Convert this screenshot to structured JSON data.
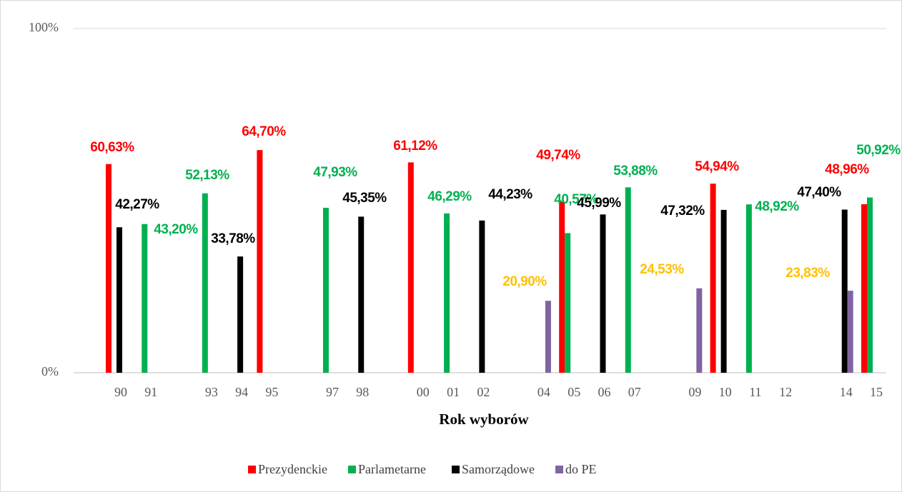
{
  "chart_data": {
    "type": "bar",
    "x_label": "Rok wyborów",
    "categories": [
      "90",
      "91",
      null,
      "93",
      "94",
      "95",
      null,
      "97",
      "98",
      null,
      "00",
      "01",
      "02",
      null,
      "04",
      "05",
      "06",
      "07",
      null,
      "09",
      "10",
      "11",
      "12",
      null,
      "14",
      "15"
    ],
    "ylim": [
      0,
      100
    ],
    "yticks": [
      {
        "value": 0,
        "label": "0%"
      },
      {
        "value": 100,
        "label": "100%"
      }
    ],
    "grid": true,
    "legend": "bottom",
    "series": [
      {
        "name": "Prezydenckie",
        "color": "#ff0000",
        "label_color": "#ff0000",
        "values": [
          60.63,
          null,
          null,
          null,
          null,
          64.7,
          null,
          null,
          null,
          null,
          61.12,
          null,
          null,
          null,
          null,
          49.74,
          null,
          null,
          null,
          null,
          54.94,
          null,
          null,
          null,
          null,
          48.96
        ],
        "value_labels": [
          "60,63%",
          null,
          null,
          null,
          null,
          "64,70%",
          null,
          null,
          null,
          null,
          "61,12%",
          null,
          null,
          null,
          null,
          "49,74%",
          null,
          null,
          null,
          null,
          "54,94%",
          null,
          null,
          null,
          null,
          "48,96%"
        ]
      },
      {
        "name": "Parlametarne",
        "color": "#00b050",
        "label_color": "#00b050",
        "values": [
          null,
          43.2,
          null,
          52.13,
          null,
          null,
          null,
          47.93,
          null,
          null,
          null,
          46.29,
          null,
          null,
          null,
          40.57,
          null,
          53.88,
          null,
          null,
          null,
          48.92,
          null,
          null,
          null,
          50.92
        ],
        "value_labels": [
          null,
          "43,20%",
          null,
          "52,13%",
          null,
          null,
          null,
          "47,93%",
          null,
          null,
          null,
          "46,29%",
          null,
          null,
          null,
          "40,57%",
          null,
          "53,88%",
          null,
          null,
          null,
          "48,92%",
          null,
          null,
          null,
          "50,92%"
        ]
      },
      {
        "name": "Samorządowe",
        "color": "#000000",
        "label_color": "#000000",
        "values": [
          42.27,
          null,
          null,
          null,
          33.78,
          null,
          null,
          null,
          45.35,
          null,
          null,
          null,
          44.23,
          null,
          null,
          null,
          45.99,
          null,
          null,
          null,
          47.32,
          null,
          null,
          null,
          47.4,
          null
        ],
        "value_labels": [
          "42,27%",
          null,
          null,
          null,
          "33,78%",
          null,
          null,
          null,
          "45,35%",
          null,
          null,
          null,
          "44,23%",
          null,
          null,
          null,
          "45,99%",
          null,
          null,
          null,
          "47,32%",
          null,
          null,
          null,
          "47,40%",
          null
        ]
      },
      {
        "name": "do PE",
        "color": "#8064a2",
        "label_color": "#ffc000",
        "values": [
          null,
          null,
          null,
          null,
          null,
          null,
          null,
          null,
          null,
          null,
          null,
          null,
          null,
          null,
          20.9,
          null,
          null,
          null,
          null,
          24.53,
          null,
          null,
          null,
          null,
          23.83,
          null
        ],
        "value_labels": [
          null,
          null,
          null,
          null,
          null,
          null,
          null,
          null,
          null,
          null,
          null,
          null,
          null,
          null,
          "20,90%",
          null,
          null,
          null,
          null,
          "24,53%",
          null,
          null,
          null,
          null,
          "23,83%",
          null
        ]
      }
    ]
  }
}
